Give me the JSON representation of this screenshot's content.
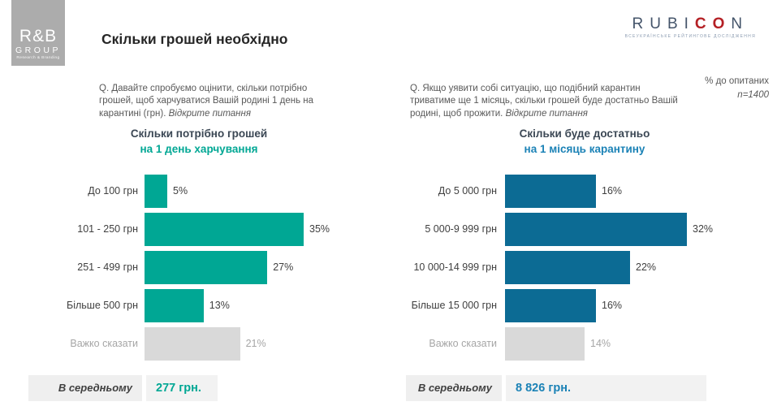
{
  "header": {
    "title": "Скільки грошей необхідно",
    "rb_logo": {
      "name": "R&B",
      "group": "GROUP",
      "tagline": "Research & Branding"
    },
    "rubicon_logo": {
      "part1": "RUBI",
      "part2": "CO",
      "part3": "N",
      "subtitle": "ВСЕУКРАЇНСЬКЕ РЕЙТИНГОВЕ ДОСЛІДЖЕННЯ"
    }
  },
  "meta": {
    "percent_note": "% до опитаних",
    "sample_size": "n=1400"
  },
  "colors": {
    "teal": "#00A794",
    "blue_bar": "#0C6B94",
    "blue_accent": "#1B82B6",
    "muted_bar": "#D9D9D9",
    "muted_text": "#A6A6A6",
    "rubicon_navy": "#44546A",
    "rubicon_red": "#B42025",
    "logo_gray": "#ACACAC"
  },
  "chart_data": [
    {
      "type": "bar",
      "orientation": "horizontal",
      "question": "Q. Давайте спробуємо оцінити, скільки потрібно грошей, щоб харчуватися Вашій родині 1 день на карантині (грн).",
      "question_note": "Відкрите питання",
      "title_line1": "Скільки потрібно грошей",
      "title_line2": "на 1 день харчування",
      "categories": [
        "До 100 грн",
        "101 - 250 грн",
        "251 - 499 грн",
        "Більше 500 грн",
        "Важко сказати"
      ],
      "values": [
        5,
        35,
        27,
        13,
        21
      ],
      "value_labels": [
        "5%",
        "35%",
        "27%",
        "13%",
        "21%"
      ],
      "unit": "%",
      "xlim": [
        0,
        40
      ],
      "bar_color": "#00A794",
      "muted_index": 4,
      "average": {
        "label": "В середньому",
        "value": "277 грн."
      }
    },
    {
      "type": "bar",
      "orientation": "horizontal",
      "question": "Q. Якщо уявити собі ситуацію, що подібний карантин триватиме ще 1 місяць, скільки грошей буде достатньо Вашій родині, щоб прожити.",
      "question_note": "Відкрите питання",
      "title_line1": "Скільки буде достатньо",
      "title_line2": "на 1 місяць карантину",
      "categories": [
        "До 5 000 грн",
        "5 000-9 999 грн",
        "10 000-14 999 грн",
        "Більше 15 000 грн",
        "Важко сказати"
      ],
      "values": [
        16,
        32,
        22,
        16,
        14
      ],
      "value_labels": [
        "16%",
        "32%",
        "22%",
        "16%",
        "14%"
      ],
      "unit": "%",
      "xlim": [
        0,
        36
      ],
      "bar_color": "#0C6B94",
      "muted_index": 4,
      "average": {
        "label": "В середньому",
        "value": "8 826 грн."
      }
    }
  ]
}
